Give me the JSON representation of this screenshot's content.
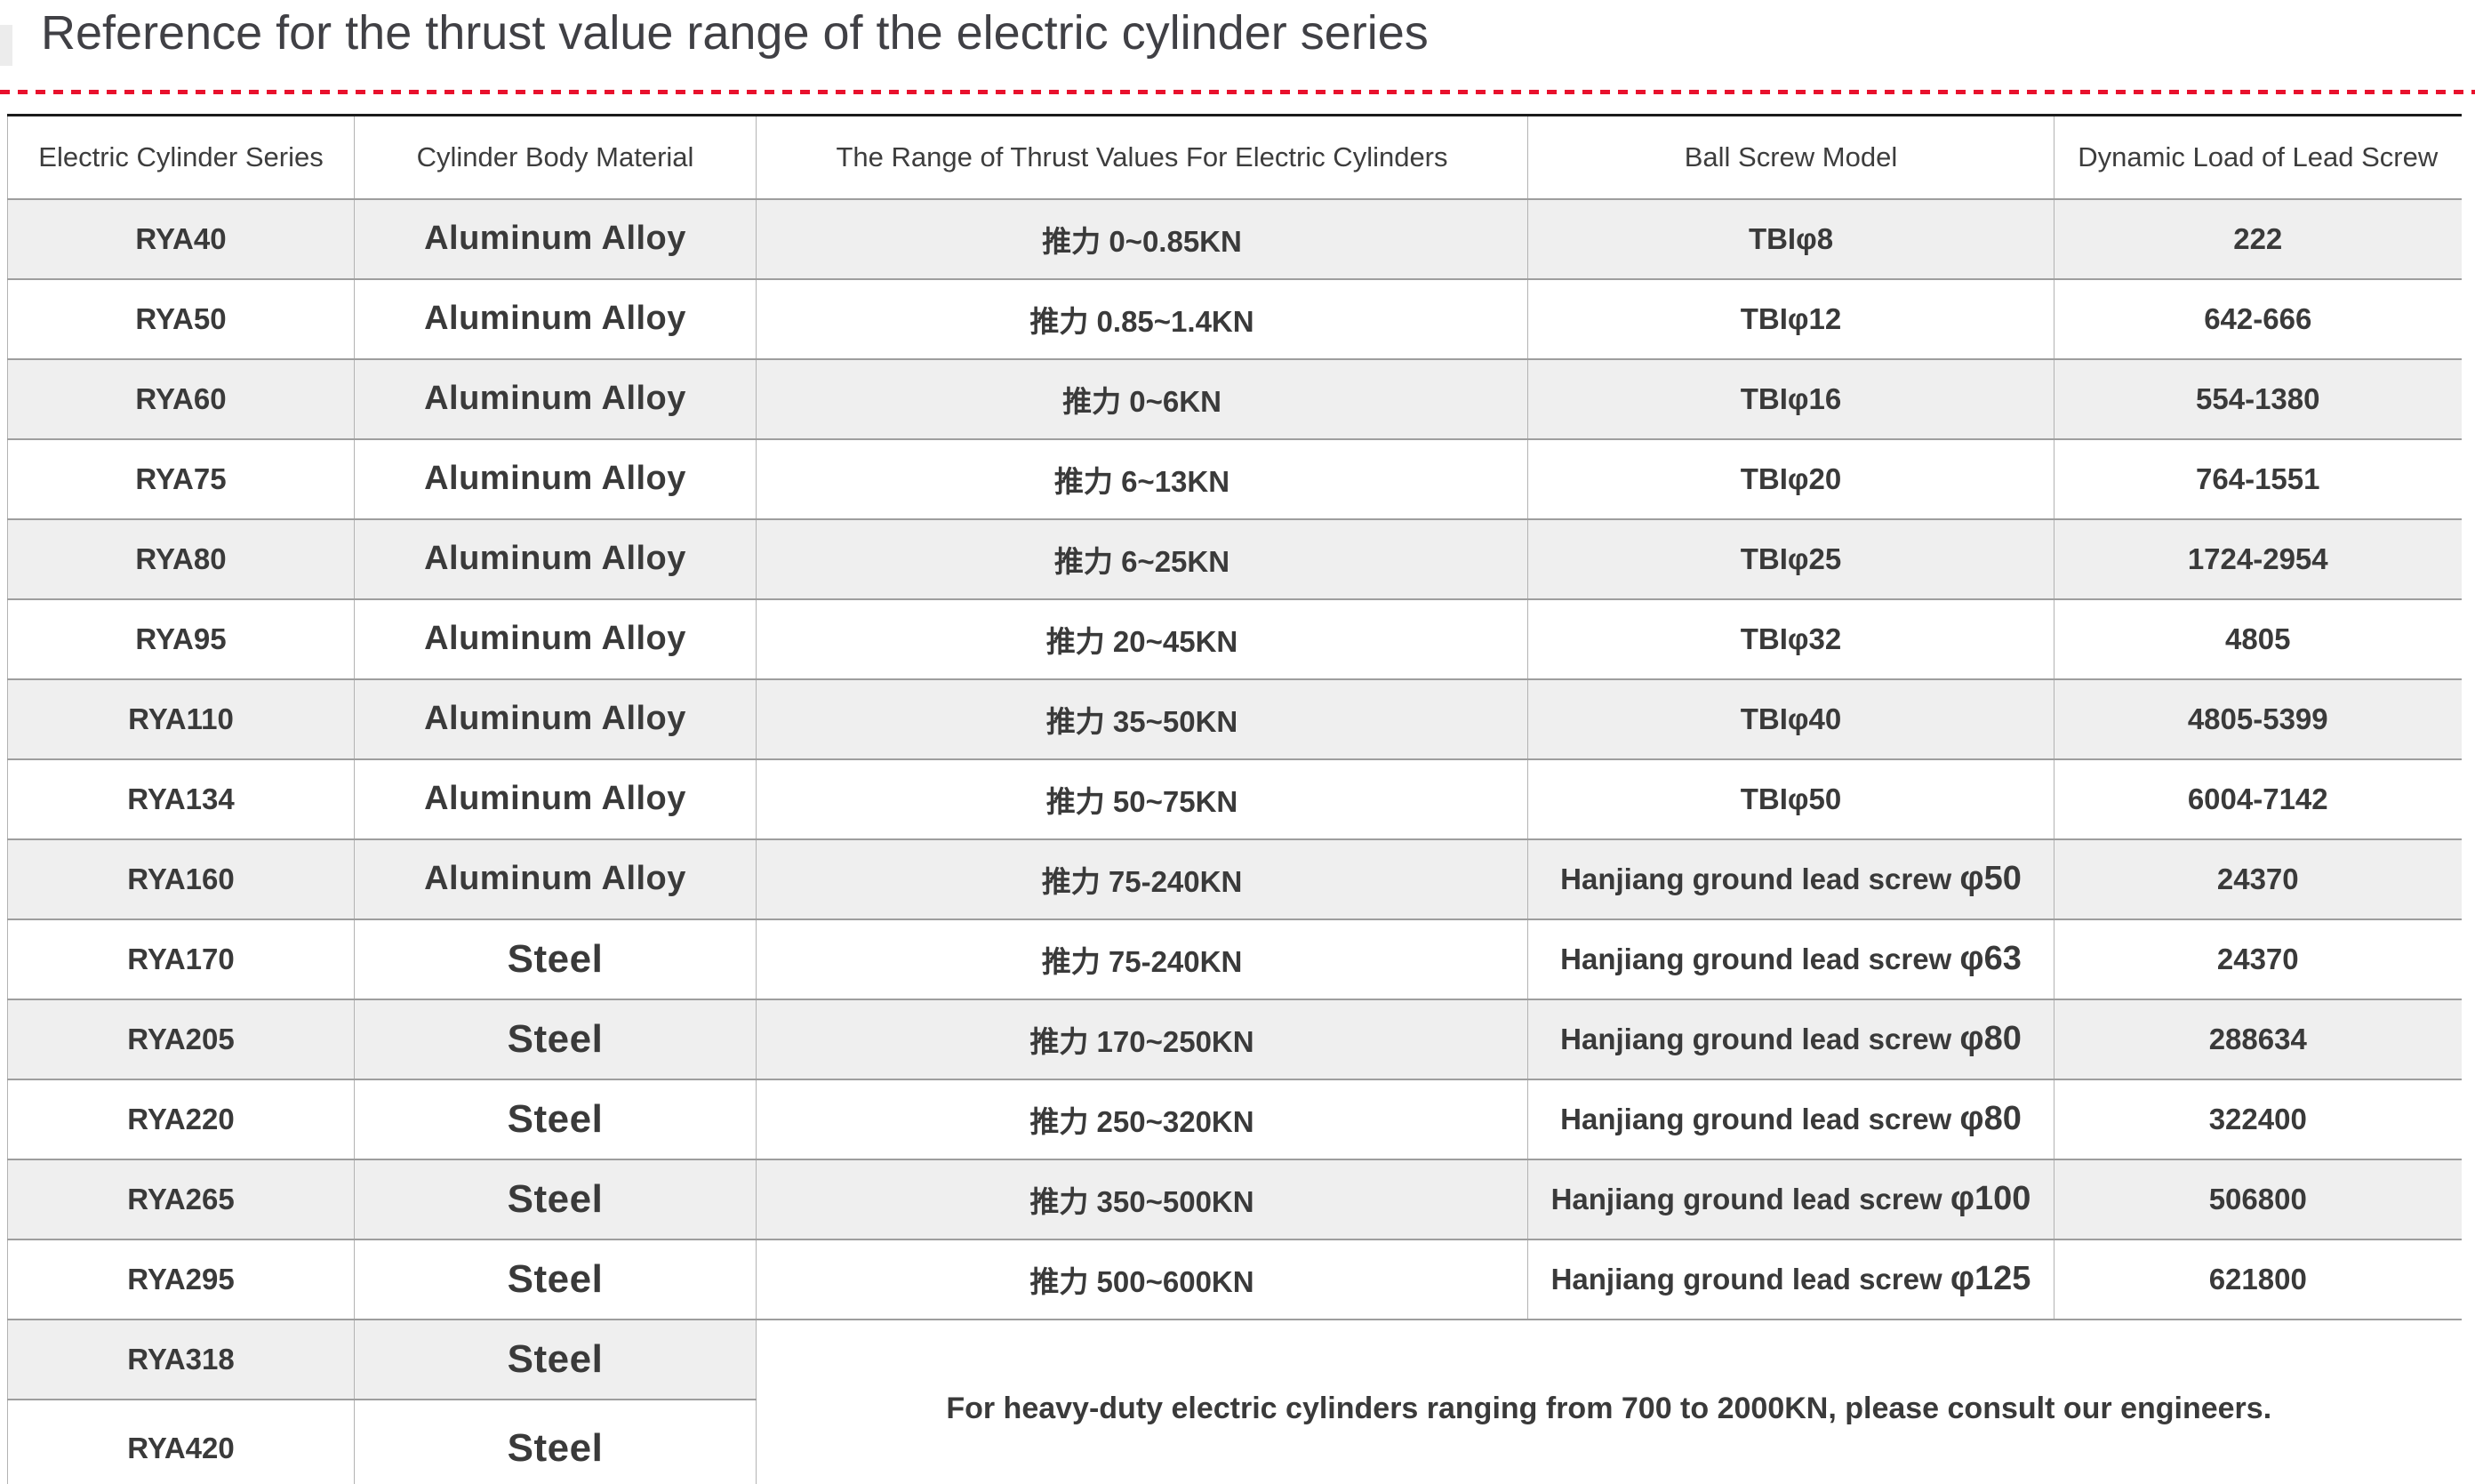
{
  "page": {
    "title": "Reference for the thrust value range of the electric cylinder series"
  },
  "colors": {
    "accent_red": "#e8112d",
    "table_top_border": "#1b1b1b",
    "row_separator": "#9e9e9e",
    "column_separator": "#b3b3b3",
    "alt_row_bg": "#efefef",
    "text": "#3a3a3a"
  },
  "table": {
    "headers": [
      "Electric Cylinder Series",
      "Cylinder Body Material",
      "The Range of Thrust Values For Electric Cylinders",
      "Ball Screw Model",
      "Dynamic Load of Lead Screw"
    ],
    "rows": [
      {
        "series": "RYA40",
        "material": "Aluminum Alloy",
        "thrust": "推力 0~0.85KN",
        "screw": "TBIφ8",
        "load": "222"
      },
      {
        "series": "RYA50",
        "material": "Aluminum Alloy",
        "thrust": "推力 0.85~1.4KN",
        "screw": "TBIφ12",
        "load": "642-666"
      },
      {
        "series": "RYA60",
        "material": "Aluminum Alloy",
        "thrust": "推力 0~6KN",
        "screw": "TBIφ16",
        "load": "554-1380"
      },
      {
        "series": "RYA75",
        "material": "Aluminum Alloy",
        "thrust": "推力 6~13KN",
        "screw": "TBIφ20",
        "load": "764-1551"
      },
      {
        "series": "RYA80",
        "material": "Aluminum Alloy",
        "thrust": "推力 6~25KN",
        "screw": "TBIφ25",
        "load": "1724-2954"
      },
      {
        "series": "RYA95",
        "material": "Aluminum Alloy",
        "thrust": "推力 20~45KN",
        "screw": "TBIφ32",
        "load": "4805"
      },
      {
        "series": "RYA110",
        "material": "Aluminum Alloy",
        "thrust": "推力 35~50KN",
        "screw": "TBIφ40",
        "load": "4805-5399"
      },
      {
        "series": "RYA134",
        "material": "Aluminum Alloy",
        "thrust": "推力 50~75KN",
        "screw": "TBIφ50",
        "load": "6004-7142"
      },
      {
        "series": "RYA160",
        "material": "Aluminum Alloy",
        "thrust": "推力 75-240KN",
        "screw": "Hanjiang ground lead screw φ50",
        "load": "24370"
      },
      {
        "series": "RYA170",
        "material": "Steel",
        "thrust": "推力 75-240KN",
        "screw": "Hanjiang ground lead screw φ63",
        "load": "24370"
      },
      {
        "series": "RYA205",
        "material": "Steel",
        "thrust": "推力 170~250KN",
        "screw": "Hanjiang ground lead screw φ80",
        "load": "288634"
      },
      {
        "series": "RYA220",
        "material": "Steel",
        "thrust": "推力 250~320KN",
        "screw": "Hanjiang ground lead screw φ80",
        "load": "322400"
      },
      {
        "series": "RYA265",
        "material": "Steel",
        "thrust": "推力 350~500KN",
        "screw": "Hanjiang ground lead screw φ100",
        "load": "506800"
      },
      {
        "series": "RYA295",
        "material": "Steel",
        "thrust": "推力 500~600KN",
        "screw": "Hanjiang ground lead screw φ125",
        "load": "621800"
      }
    ],
    "footer_rows": [
      {
        "series": "RYA318",
        "material": "Steel"
      },
      {
        "series": "RYA420",
        "material": "Steel"
      }
    ],
    "note": "For heavy-duty electric cylinders ranging from 700 to 2000KN, please consult our engineers."
  }
}
